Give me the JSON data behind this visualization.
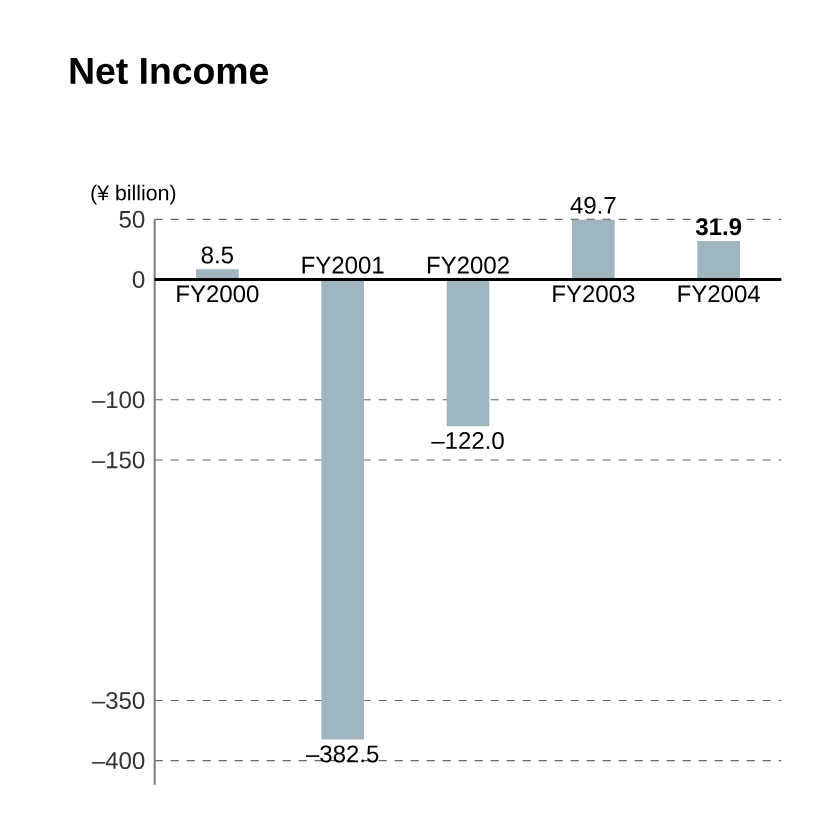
{
  "chart_data": {
    "type": "bar",
    "title": "Net Income",
    "ylabel": "(¥ billion)",
    "categories": [
      "FY2000",
      "FY2001",
      "FY2002",
      "FY2003",
      "FY2004"
    ],
    "values": [
      8.5,
      -382.5,
      -122.0,
      49.7,
      31.9
    ],
    "value_labels": [
      "8.5",
      "–382.5",
      "–122.0",
      "49.7",
      "**31.9**"
    ],
    "color": "#9eb4be",
    "ylim": [
      -420,
      50
    ],
    "yticks": [
      50,
      0,
      {
        "value": -100,
        "label": "–100"
      },
      {
        "value": -150,
        "label": "–150"
      },
      {
        "value": -350,
        "label": "–350"
      },
      {
        "value": -400,
        "label": "–400"
      }
    ],
    "grid": "y"
  }
}
